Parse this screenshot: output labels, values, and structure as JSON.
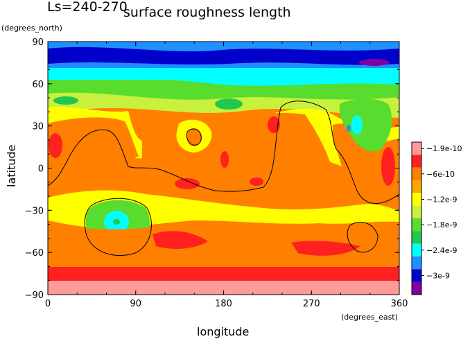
{
  "chart_data": {
    "type": "heatmap",
    "title": "surface roughness length",
    "subtitle": "Ls=240-270",
    "xlabel": "longitude",
    "ylabel": "latitude",
    "x_unit": "(degrees_east)",
    "y_unit": "(degrees_north)",
    "xlim": [
      0,
      360
    ],
    "ylim": [
      -90,
      90
    ],
    "x_ticks": [
      "0",
      "90",
      "180",
      "270",
      "360"
    ],
    "y_ticks": [
      "90",
      "60",
      "30",
      "0",
      "-30",
      "-60",
      "-90"
    ],
    "legend": {
      "placement": "right",
      "labels": [
        "-1.9e-10",
        "-6e-10",
        "-1.2e-9",
        "-1.8e-9",
        "-2.4e-9",
        "-3e-9"
      ],
      "colors": [
        "#ff9a9a",
        "#ff2020",
        "#ff7f00",
        "#ffa500",
        "#ffff00",
        "#c8f03c",
        "#58dc2e",
        "#20c850",
        "#00ffff",
        "#1e90ff",
        "#0000cd",
        "#8000a0"
      ]
    }
  }
}
